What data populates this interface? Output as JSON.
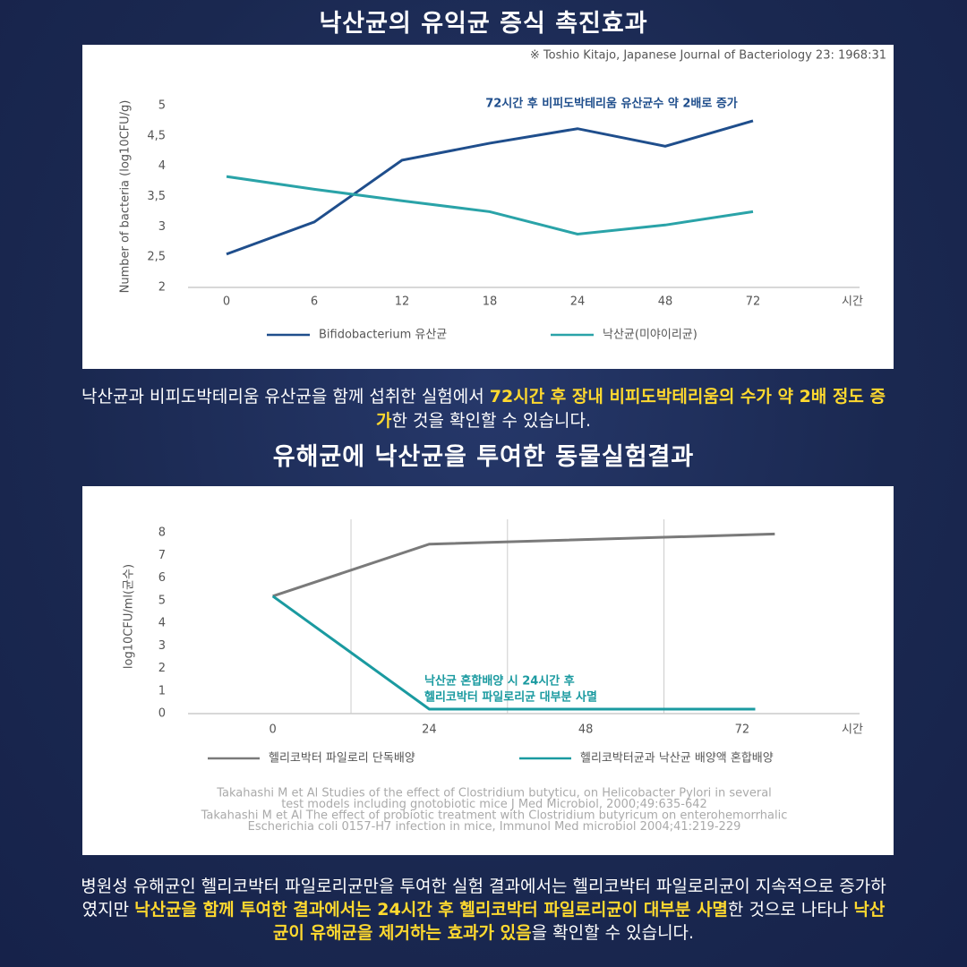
{
  "sections": [
    {
      "heading": "낙산균의 유익균 증식 촉진효과",
      "caption": [
        {
          "text": "낙산균과 비피도박테리움 유산균을 함께 섭취한 실험에서 ",
          "highlight": false
        },
        {
          "text": "72시간 후 장내 비피도박테리움의 수가 약 2배 정도 증가",
          "highlight": true
        },
        {
          "text": "한 것을 확인할 수 있습니다.",
          "highlight": false
        }
      ]
    },
    {
      "heading": "유해균에 낙산균을 투여한 동물실험결과",
      "caption": [
        {
          "text": "병원성 유해균인 헬리코박터 파일로리균만을 투여한 실험 결과에서는 헬리코박터 파일로리균이 지속적으로 증가하였지만 ",
          "highlight": false
        },
        {
          "text": "낙산균을 함께 투여한 결과에서는 24시간 후 헬리코박터 파일로리균이 대부분 사멸",
          "highlight": true
        },
        {
          "text": "한 것으로 나타나 ",
          "highlight": false
        },
        {
          "text": "낙산균이 유해균을 제거하는 효과가 있음",
          "highlight": true
        },
        {
          "text": "을 확인할 수 있습니다.",
          "highlight": false
        }
      ]
    }
  ],
  "chart_data": [
    {
      "type": "line",
      "source": "※ Toshio Kitajo, Japanese Journal of Bacteriology 23: 1968:31",
      "annotation": "72시간 후 비피도박테리움 유산균수 약 2배로 증가",
      "y_label": "Number of bacteria (log10CFU/g)",
      "x_label": "시간",
      "categories": [
        "0",
        "6",
        "12",
        "18",
        "24",
        "48",
        "72"
      ],
      "ylim": [
        2,
        5
      ],
      "yticks": [
        2,
        {
          "value": 2.5,
          "label": "2,5"
        },
        3,
        {
          "value": 3.5,
          "label": "3,5"
        },
        4,
        {
          "value": 4.5,
          "label": "4,5"
        },
        5
      ],
      "grid": false,
      "series": [
        {
          "name": "Bifidobacterium 유산균",
          "color": "#1f4e8c",
          "values": [
            2.55,
            3.08,
            4.1,
            4.38,
            4.62,
            4.33,
            4.75
          ]
        },
        {
          "name": "낙산균(미야이리균)",
          "color": "#2aa3a8",
          "values": [
            3.83,
            3.62,
            3.43,
            3.25,
            2.88,
            3.03,
            3.25
          ]
        }
      ]
    },
    {
      "type": "line",
      "annotation": [
        "낙산균 혼합배양 시 24시간 후",
        "헬리코박터 파일로리균 대부분 사멸"
      ],
      "y_label": "log10CFU/ml(균수)",
      "x_label": "시간",
      "xlim": [
        -13,
        90
      ],
      "xticks": [
        0,
        24,
        48,
        72
      ],
      "x_grid": [
        12,
        36,
        60
      ],
      "ylim": [
        0,
        8.6
      ],
      "yticks": [
        0,
        1,
        2,
        3,
        4,
        5,
        6,
        7,
        8
      ],
      "series": [
        {
          "name": "헬리코박터 파일로리 단독배양",
          "color": "#7a7a7a",
          "x": [
            0,
            24,
            77
          ],
          "values": [
            5.2,
            7.5,
            7.95
          ]
        },
        {
          "name": "헬리코박터균과 낙산균 배양액 혼합배양",
          "color": "#1a9aa0",
          "x": [
            0,
            24,
            74
          ],
          "values": [
            5.2,
            0.2,
            0.2
          ]
        }
      ],
      "references": [
        "Takahashi M et Al Studies of the effect of Clostridium butyticu, on Helicobacter Pylori in several",
        "test models including gnotobiotic mice J Med Microbiol, 2000;49:635-642",
        "Takahashi M et Al The effect of probiotic treatment with Clostridium butyricum on enterohemorrhalic",
        "Escherichia coli 0157-H7 infection in mice, Immunol Med microbiol 2004;41:219-229"
      ]
    }
  ]
}
